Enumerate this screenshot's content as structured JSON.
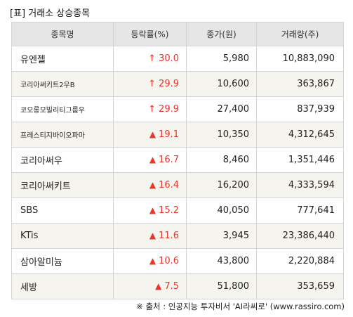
{
  "title": "[표] 거래소 상승종목",
  "headers": {
    "name": "종목명",
    "rate": "등락률(%)",
    "price": "종가(원)",
    "volume": "거래량(주)"
  },
  "rows": [
    {
      "name": "유엔젤",
      "rate": "30.0",
      "price": "5,980",
      "volume": "10,883,090",
      "marker": "up-arrow-icon",
      "small": false
    },
    {
      "name": "코리아써키트2우B",
      "rate": "29.9",
      "price": "10,600",
      "volume": "363,867",
      "marker": "up-arrow-icon",
      "small": true
    },
    {
      "name": "코오롱모빌리티그룹우",
      "rate": "29.9",
      "price": "27,400",
      "volume": "837,939",
      "marker": "up-arrow-icon",
      "small": true
    },
    {
      "name": "프레스티지바이오파마",
      "rate": "19.1",
      "price": "10,350",
      "volume": "4,312,645",
      "marker": "up-triangle-icon",
      "small": true
    },
    {
      "name": "코리아써우",
      "rate": "16.7",
      "price": "8,460",
      "volume": "1,351,446",
      "marker": "up-triangle-icon",
      "small": false
    },
    {
      "name": "코리아써키트",
      "rate": "16.4",
      "price": "16,200",
      "volume": "4,333,594",
      "marker": "up-triangle-icon",
      "small": false
    },
    {
      "name": "SBS",
      "rate": "15.2",
      "price": "40,050",
      "volume": "777,641",
      "marker": "up-triangle-icon",
      "small": false
    },
    {
      "name": "KTis",
      "rate": "11.6",
      "price": "3,945",
      "volume": "23,386,440",
      "marker": "up-triangle-icon",
      "small": false
    },
    {
      "name": "삼아알미늄",
      "rate": "10.6",
      "price": "43,800",
      "volume": "2,220,884",
      "marker": "up-triangle-icon",
      "small": false
    },
    {
      "name": "세방",
      "rate": "7.5",
      "price": "51,800",
      "volume": "353,659",
      "marker": "up-triangle-icon",
      "small": false
    }
  ],
  "source": "※ 출처 : 인공지능 투자비서 'AI라씨로' (www.rassiro.com)",
  "colors": {
    "rise": "#e8352c",
    "header_bg": "#e6e6e6",
    "alt_row_bg": "#f6f4ee",
    "border": "#d4d4d4"
  }
}
